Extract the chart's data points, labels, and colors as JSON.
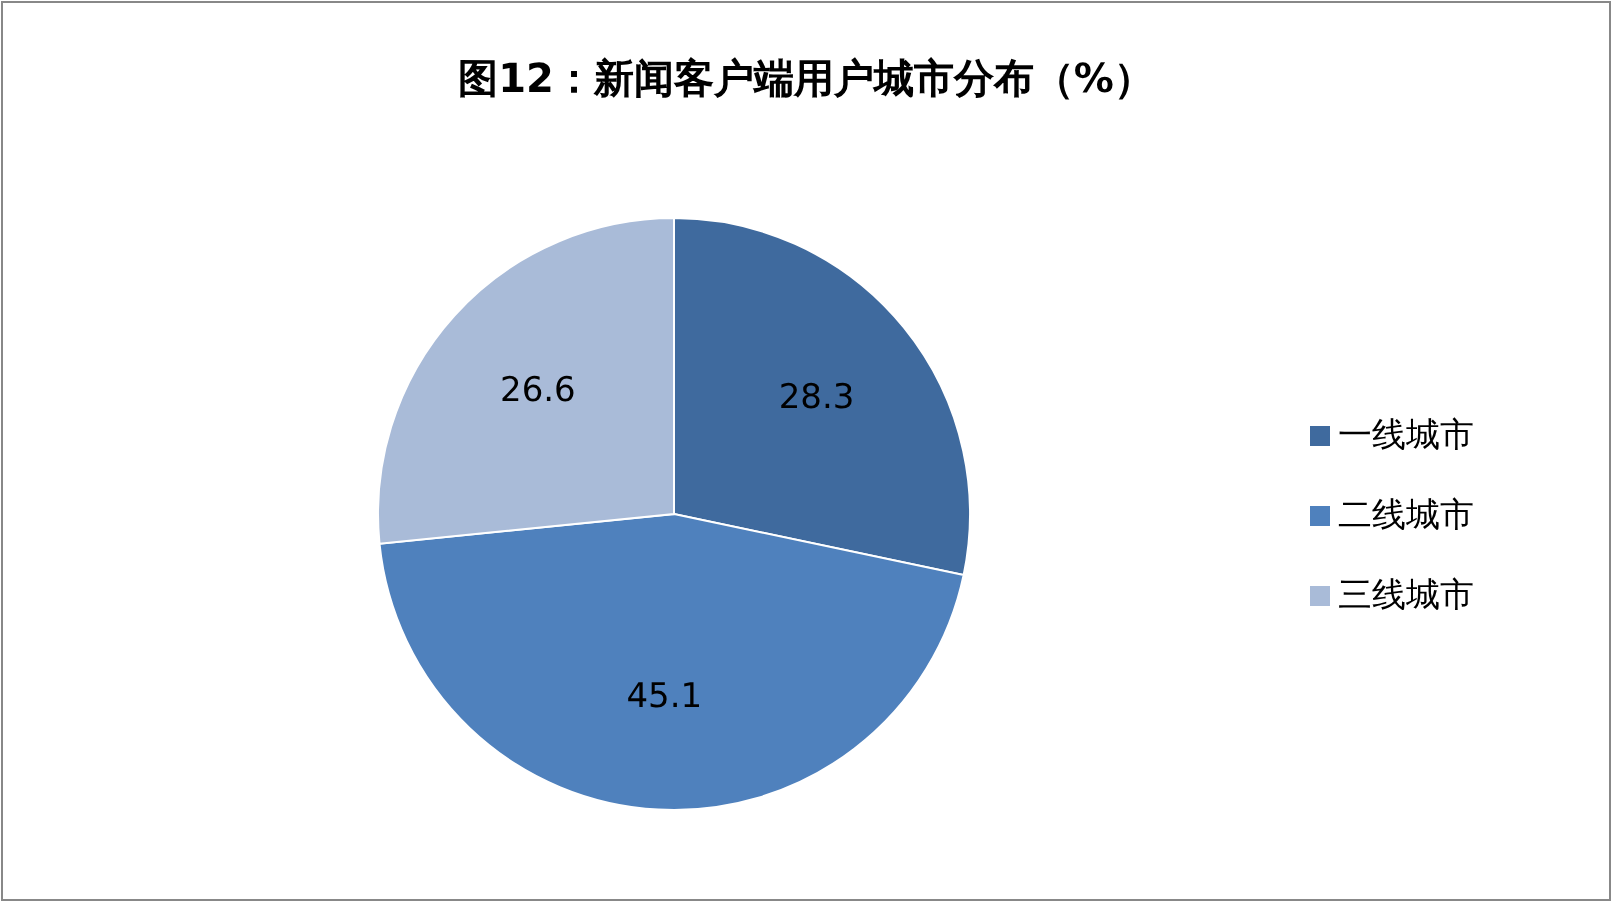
{
  "chart_data": {
    "type": "pie",
    "title": "图12：新闻客户端用户城市分布（%）",
    "categories": [
      "一线城市",
      "二线城市",
      "三线城市"
    ],
    "values": [
      28.3,
      45.1,
      26.6
    ],
    "colors": [
      "#3f6a9e",
      "#4f81bd",
      "#a9bbd8"
    ],
    "data_labels": true,
    "legend": "right"
  }
}
